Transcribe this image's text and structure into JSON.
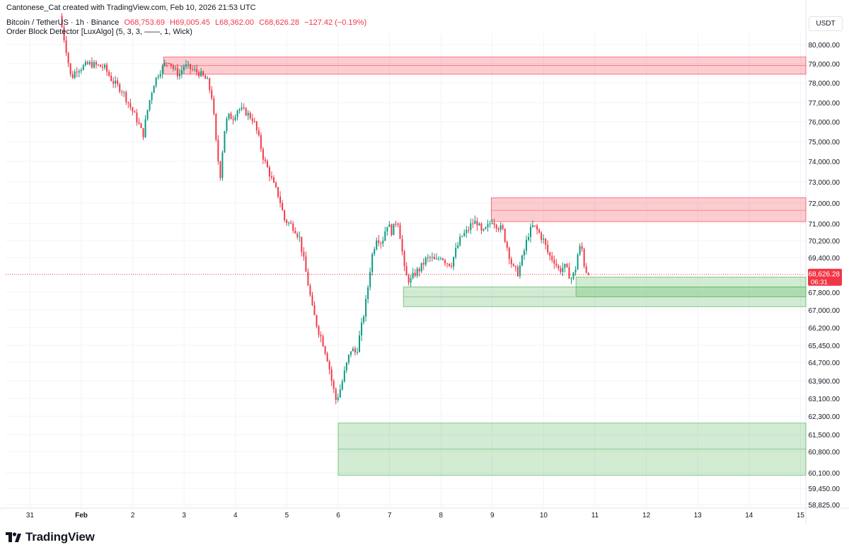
{
  "header": {
    "attribution": "Cantonese_Cat created with TradingView.com, Feb 10, 2026 21:53 UTC",
    "symbol": "Bitcoin / TetherUS · 1h · Binance",
    "open": "O68,753.69",
    "high": "H69,005.45",
    "low": "L68,362.00",
    "close": "C68,626.28",
    "change": "−127.42 (−0.19%)",
    "indicator": "Order Block Detector [LuxAlgo] (5, 3, 3, ——, 1, Wick)"
  },
  "currency": "USDT",
  "brand": "TradingView",
  "price_label": {
    "value": "68,626.28",
    "countdown": "06:31"
  },
  "colors": {
    "up": "#089981",
    "down": "#f23645",
    "bear_zone": "#f23645",
    "bull_zone": "#4caf50",
    "grid": "#f0f3fa"
  },
  "chart_data": {
    "type": "candlestick",
    "symbol": "BTCUSDT",
    "timeframe": "1h",
    "y_ticks": [
      80000,
      79000,
      78000,
      77000,
      76000,
      75000,
      74000,
      73000,
      72000,
      71000,
      70200,
      69400,
      67800,
      67000,
      66200,
      65450,
      64700,
      63900,
      63100,
      62300,
      61500,
      60800,
      60100,
      59450,
      58825
    ],
    "y_tick_labels": [
      "80,000.00",
      "79,000.00",
      "78,000.00",
      "77,000.00",
      "76,000.00",
      "75,000.00",
      "74,000.00",
      "73,000.00",
      "72,000.00",
      "71,000.00",
      "70,200.00",
      "69,400.00",
      "67,800.00",
      "67,000.00",
      "66,200.00",
      "65,450.00",
      "64,700.00",
      "63,900.00",
      "63,100.00",
      "62,300.00",
      "61,500.00",
      "60,800.00",
      "60,100.00",
      "59,450.00",
      "58,825.00"
    ],
    "x_ticks": [
      {
        "label": "31",
        "day": -1
      },
      {
        "label": "Feb",
        "day": 0
      },
      {
        "label": "2",
        "day": 1
      },
      {
        "label": "3",
        "day": 2
      },
      {
        "label": "4",
        "day": 3
      },
      {
        "label": "5",
        "day": 4
      },
      {
        "label": "6",
        "day": 5
      },
      {
        "label": "7",
        "day": 6
      },
      {
        "label": "8",
        "day": 7
      },
      {
        "label": "9",
        "day": 8
      },
      {
        "label": "10",
        "day": 9
      },
      {
        "label": "11",
        "day": 10
      },
      {
        "label": "12",
        "day": 11
      },
      {
        "label": "13",
        "day": 12
      },
      {
        "label": "14",
        "day": 13
      },
      {
        "label": "15",
        "day": 14
      }
    ],
    "last_price": 68626.28,
    "order_blocks": [
      {
        "type": "bearish",
        "start_day": 1.6,
        "top": 79350,
        "bottom": 78450,
        "mid": 78900
      },
      {
        "type": "bearish",
        "start_day": 7.98,
        "top": 72250,
        "bottom": 71100,
        "mid": 71650
      },
      {
        "type": "bullish",
        "start_day": 6.27,
        "top": 68050,
        "bottom": 67150,
        "mid": 67600
      },
      {
        "type": "bullish",
        "start_day": 9.63,
        "top": 68500,
        "bottom": 67600,
        "mid": 68050
      },
      {
        "type": "bullish",
        "start_day": 5.0,
        "top": 62000,
        "bottom": 60000,
        "mid": 60900
      }
    ],
    "anchors": [
      [
        -0.42,
        81500
      ],
      [
        -0.3,
        79800
      ],
      [
        -0.2,
        78200
      ],
      [
        -0.1,
        78700
      ],
      [
        0.0,
        78800
      ],
      [
        0.15,
        79000
      ],
      [
        0.3,
        78900
      ],
      [
        0.45,
        78800
      ],
      [
        0.6,
        78100
      ],
      [
        0.8,
        77600
      ],
      [
        0.95,
        76800
      ],
      [
        1.1,
        76000
      ],
      [
        1.2,
        75300
      ],
      [
        1.3,
        76800
      ],
      [
        1.4,
        77900
      ],
      [
        1.5,
        78500
      ],
      [
        1.6,
        78900
      ],
      [
        1.7,
        79200
      ],
      [
        1.8,
        78700
      ],
      [
        1.9,
        78400
      ],
      [
        2.0,
        78900
      ],
      [
        2.15,
        78700
      ],
      [
        2.3,
        78500
      ],
      [
        2.45,
        78100
      ],
      [
        2.55,
        77200
      ],
      [
        2.62,
        75000
      ],
      [
        2.7,
        73200
      ],
      [
        2.78,
        75500
      ],
      [
        2.85,
        76300
      ],
      [
        2.95,
        76200
      ],
      [
        3.05,
        76700
      ],
      [
        3.2,
        76500
      ],
      [
        3.35,
        76100
      ],
      [
        3.45,
        75200
      ],
      [
        3.55,
        74100
      ],
      [
        3.65,
        73500
      ],
      [
        3.75,
        72800
      ],
      [
        3.85,
        72300
      ],
      [
        3.95,
        71200
      ],
      [
        4.05,
        71000
      ],
      [
        4.15,
        70800
      ],
      [
        4.25,
        70300
      ],
      [
        4.35,
        69000
      ],
      [
        4.42,
        68100
      ],
      [
        4.5,
        67000
      ],
      [
        4.6,
        66200
      ],
      [
        4.7,
        65600
      ],
      [
        4.8,
        64800
      ],
      [
        4.88,
        63800
      ],
      [
        4.96,
        63000
      ],
      [
        5.05,
        63600
      ],
      [
        5.15,
        64500
      ],
      [
        5.25,
        65300
      ],
      [
        5.35,
        65100
      ],
      [
        5.45,
        66200
      ],
      [
        5.55,
        67500
      ],
      [
        5.65,
        69400
      ],
      [
        5.75,
        70400
      ],
      [
        5.85,
        70100
      ],
      [
        5.95,
        71000
      ],
      [
        6.05,
        70600
      ],
      [
        6.15,
        71300
      ],
      [
        6.22,
        70200
      ],
      [
        6.3,
        68600
      ],
      [
        6.4,
        68300
      ],
      [
        6.5,
        68700
      ],
      [
        6.6,
        68900
      ],
      [
        6.7,
        69300
      ],
      [
        6.8,
        69400
      ],
      [
        6.9,
        69200
      ],
      [
        7.0,
        69500
      ],
      [
        7.1,
        69200
      ],
      [
        7.2,
        69100
      ],
      [
        7.3,
        69800
      ],
      [
        7.4,
        70400
      ],
      [
        7.5,
        70600
      ],
      [
        7.6,
        71000
      ],
      [
        7.7,
        71100
      ],
      [
        7.8,
        70500
      ],
      [
        7.9,
        70800
      ],
      [
        8.0,
        71200
      ],
      [
        8.1,
        70900
      ],
      [
        8.2,
        70700
      ],
      [
        8.3,
        69800
      ],
      [
        8.4,
        68900
      ],
      [
        8.5,
        68700
      ],
      [
        8.6,
        69500
      ],
      [
        8.7,
        70500
      ],
      [
        8.8,
        70900
      ],
      [
        8.9,
        70600
      ],
      [
        9.0,
        70200
      ],
      [
        9.1,
        69500
      ],
      [
        9.2,
        69300
      ],
      [
        9.3,
        68800
      ],
      [
        9.4,
        69000
      ],
      [
        9.5,
        68600
      ],
      [
        9.55,
        68400
      ],
      [
        9.62,
        68900
      ],
      [
        9.68,
        69800
      ],
      [
        9.74,
        69900
      ],
      [
        9.8,
        68900
      ],
      [
        9.86,
        68700
      ],
      [
        9.9,
        68626
      ]
    ]
  }
}
